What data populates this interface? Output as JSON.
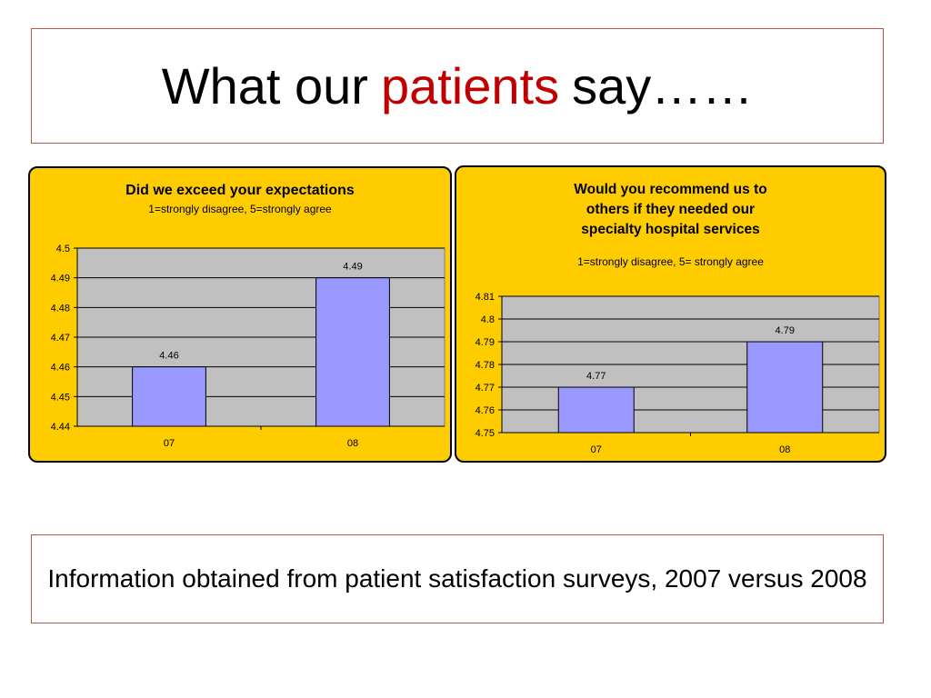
{
  "slide": {
    "title_prefix": "What our",
    "title_accent": "patients",
    "title_suffix": "say……",
    "footer": "Information obtained from patient satisfaction surveys, 2007 versus 2008"
  },
  "colors": {
    "panel_bg": "#ffcc00",
    "plot_bg": "#c0c0c0",
    "bar_fill": "#9999ff",
    "title_accent": "#c00000",
    "frame": "#c0504d"
  },
  "chart_data": [
    {
      "type": "bar",
      "title": "Did we exceed your expectations",
      "subtitle": "1=strongly disagree, 5=strongly agree",
      "categories": [
        "07",
        "08"
      ],
      "values": [
        4.46,
        4.49
      ],
      "data_labels": [
        "4.46",
        "4.49"
      ],
      "ylim": [
        4.44,
        4.5
      ],
      "yticks": [
        "4.44",
        "4.45",
        "4.46",
        "4.47",
        "4.48",
        "4.49",
        "4.5"
      ],
      "grid": true
    },
    {
      "type": "bar",
      "title": "Would you recommend us to others if they needed our specialty hospital services",
      "title_lines": [
        "Would you recommend us to",
        "others if they needed our",
        "specialty hospital services"
      ],
      "subtitle": "1=strongly disagree, 5= strongly agree",
      "categories": [
        "07",
        "08"
      ],
      "values": [
        4.77,
        4.79
      ],
      "data_labels": [
        "4.77",
        "4.79"
      ],
      "ylim": [
        4.75,
        4.81
      ],
      "yticks": [
        "4.75",
        "4.76",
        "4.77",
        "4.78",
        "4.79",
        "4.8",
        "4.81"
      ],
      "grid": true
    }
  ]
}
